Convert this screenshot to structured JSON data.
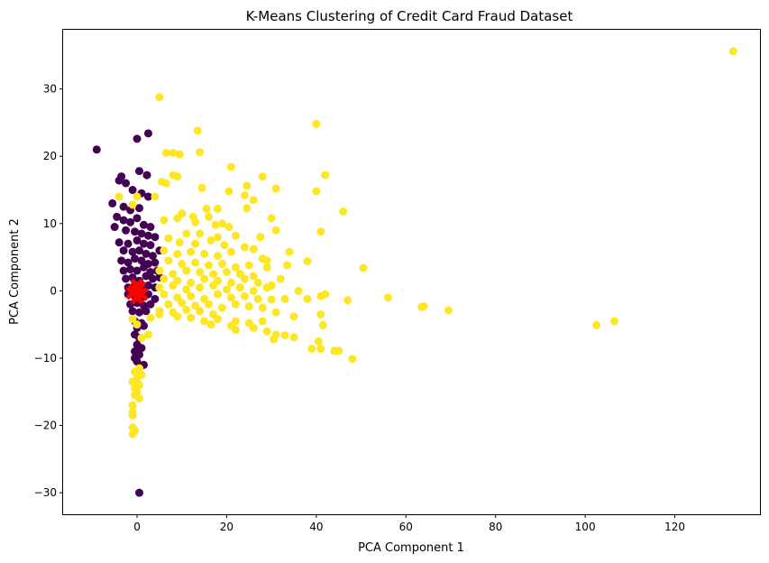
{
  "chart_data": {
    "type": "scatter",
    "title": "K-Means Clustering of Credit Card Fraud Dataset",
    "xlabel": "PCA Component 1",
    "ylabel": "PCA Component 2",
    "xlim": [
      -16.5,
      139
    ],
    "ylim": [
      -33.2,
      38.8
    ],
    "xticks": [
      0,
      20,
      40,
      60,
      80,
      100,
      120
    ],
    "yticks": [
      -30,
      -20,
      -10,
      0,
      10,
      20,
      30
    ],
    "grid": false,
    "legend": "none",
    "series": [
      {
        "color": "#440154",
        "points": [
          [
            -9,
            21
          ],
          [
            0,
            22.6
          ],
          [
            2.5,
            23.4
          ],
          [
            0.5,
            17.8
          ],
          [
            2.2,
            17.2
          ],
          [
            -3.5,
            17
          ],
          [
            -4,
            16.4
          ],
          [
            -2.5,
            16
          ],
          [
            -1,
            15
          ],
          [
            1,
            14.5
          ],
          [
            2.5,
            14
          ],
          [
            -5.5,
            13
          ],
          [
            -3,
            12.5
          ],
          [
            -1.5,
            12
          ],
          [
            0.5,
            12.3
          ],
          [
            -4.5,
            11
          ],
          [
            -3,
            10.5
          ],
          [
            -1.5,
            10.2
          ],
          [
            0,
            10.8
          ],
          [
            1.5,
            9.8
          ],
          [
            3,
            9.5
          ],
          [
            -5,
            9.5
          ],
          [
            -2.5,
            9
          ],
          [
            -0.5,
            8.8
          ],
          [
            1,
            8.5
          ],
          [
            2.5,
            8.2
          ],
          [
            4,
            8
          ],
          [
            -4,
            7.2
          ],
          [
            -2,
            7
          ],
          [
            0,
            7.5
          ],
          [
            1.5,
            7
          ],
          [
            3,
            6.8
          ],
          [
            -3,
            6
          ],
          [
            -1,
            5.8
          ],
          [
            0.5,
            6
          ],
          [
            2,
            5.5
          ],
          [
            3.5,
            5.2
          ],
          [
            5,
            6
          ],
          [
            -3.5,
            4.5
          ],
          [
            -2,
            4.2
          ],
          [
            -0.5,
            4.8
          ],
          [
            1,
            4.5
          ],
          [
            2.5,
            4
          ],
          [
            4,
            4.2
          ],
          [
            -3,
            3
          ],
          [
            -1.5,
            3.2
          ],
          [
            0,
            3
          ],
          [
            1.5,
            3.5
          ],
          [
            3,
            2.8
          ],
          [
            4.5,
            3
          ],
          [
            -2.5,
            1.8
          ],
          [
            -1,
            2
          ],
          [
            0.5,
            1.5
          ],
          [
            2,
            2.2
          ],
          [
            3.5,
            1.8
          ],
          [
            5,
            2
          ],
          [
            -2,
            0.5
          ],
          [
            -0.5,
            0.8
          ],
          [
            1,
            0.2
          ],
          [
            2.5,
            0.8
          ],
          [
            4,
            0.5
          ],
          [
            -2,
            -0.5
          ],
          [
            -0.5,
            -0.8
          ],
          [
            1,
            -1
          ],
          [
            2.5,
            -0.5
          ],
          [
            4,
            -1.2
          ],
          [
            -1.5,
            -2
          ],
          [
            0,
            -1.8
          ],
          [
            1.5,
            -2.2
          ],
          [
            3,
            -2
          ],
          [
            -1,
            -3
          ],
          [
            0.5,
            -3.2
          ],
          [
            2,
            -3
          ],
          [
            -0.5,
            -4.5
          ],
          [
            1,
            -4.8
          ],
          [
            0,
            -5.5
          ],
          [
            1.5,
            -5.2
          ],
          [
            -0.5,
            -6.5
          ],
          [
            0.5,
            -7
          ],
          [
            0,
            -8
          ],
          [
            1,
            -8.5
          ],
          [
            -0.5,
            -9
          ],
          [
            0.5,
            -9.5
          ],
          [
            -0.5,
            -10
          ],
          [
            0,
            -10.5
          ],
          [
            1.5,
            -11
          ],
          [
            0.5,
            -30
          ]
        ]
      },
      {
        "color": "#fde725",
        "points": [
          [
            133,
            35.6
          ],
          [
            5,
            28.8
          ],
          [
            40,
            24.8
          ],
          [
            13.5,
            23.8
          ],
          [
            6.5,
            20.5
          ],
          [
            8,
            20.5
          ],
          [
            9.5,
            20.3
          ],
          [
            14,
            20.6
          ],
          [
            21,
            18.4
          ],
          [
            8,
            17.2
          ],
          [
            9,
            17
          ],
          [
            28,
            17
          ],
          [
            42,
            17.2
          ],
          [
            5.5,
            16.2
          ],
          [
            6.5,
            16
          ],
          [
            24.5,
            15.6
          ],
          [
            14.5,
            15.3
          ],
          [
            31,
            15.2
          ],
          [
            40,
            14.8
          ],
          [
            4,
            14
          ],
          [
            24,
            14.2
          ],
          [
            20.5,
            14.8
          ],
          [
            26,
            13.5
          ],
          [
            -4,
            14
          ],
          [
            0,
            14
          ],
          [
            -1,
            12.8
          ],
          [
            46,
            11.8
          ],
          [
            10,
            11.5
          ],
          [
            15.5,
            12.2
          ],
          [
            18,
            12.2
          ],
          [
            24.5,
            12.3
          ],
          [
            12.5,
            11
          ],
          [
            16,
            11
          ],
          [
            6,
            10.5
          ],
          [
            9,
            10.8
          ],
          [
            13,
            10.2
          ],
          [
            19,
            10
          ],
          [
            30,
            10.8
          ],
          [
            17.5,
            9.8
          ],
          [
            20.5,
            9.5
          ],
          [
            41,
            8.8
          ],
          [
            31,
            9
          ],
          [
            11,
            8.5
          ],
          [
            14,
            8.5
          ],
          [
            18,
            8
          ],
          [
            22,
            8.2
          ],
          [
            27.5,
            8
          ],
          [
            7,
            7.8
          ],
          [
            9.5,
            7.2
          ],
          [
            13,
            7
          ],
          [
            16.5,
            7.5
          ],
          [
            19.5,
            6.8
          ],
          [
            24,
            6.5
          ],
          [
            26,
            6.2
          ],
          [
            34,
            5.8
          ],
          [
            6,
            6
          ],
          [
            9,
            5.5
          ],
          [
            12,
            5.8
          ],
          [
            15,
            5.5
          ],
          [
            18,
            5.2
          ],
          [
            21,
            5.8
          ],
          [
            28,
            4.8
          ],
          [
            38,
            4.4
          ],
          [
            29,
            4.5
          ],
          [
            7,
            4.5
          ],
          [
            10,
            4
          ],
          [
            13,
            4.2
          ],
          [
            16,
            3.8
          ],
          [
            19,
            4
          ],
          [
            22,
            3.5
          ],
          [
            25,
            3.8
          ],
          [
            33.5,
            3.8
          ],
          [
            29,
            3.5
          ],
          [
            50.5,
            3.4
          ],
          [
            5,
            3
          ],
          [
            8,
            2.5
          ],
          [
            11,
            3
          ],
          [
            14,
            2.8
          ],
          [
            17,
            2.5
          ],
          [
            20,
            2.8
          ],
          [
            23,
            2.5
          ],
          [
            26,
            2.2
          ],
          [
            32,
            1.8
          ],
          [
            6,
            1.8
          ],
          [
            9,
            1.5
          ],
          [
            12,
            1.2
          ],
          [
            15,
            1.8
          ],
          [
            18,
            1.5
          ],
          [
            21,
            1.2
          ],
          [
            24,
            1.8
          ],
          [
            27,
            1.2
          ],
          [
            30,
            0.8
          ],
          [
            5,
            0.5
          ],
          [
            8,
            0.8
          ],
          [
            11,
            0.2
          ],
          [
            14,
            0.5
          ],
          [
            17,
            0.8
          ],
          [
            20,
            0.2
          ],
          [
            23,
            0.5
          ],
          [
            26,
            0
          ],
          [
            29,
            0.5
          ],
          [
            36,
            0
          ],
          [
            41,
            -0.8
          ],
          [
            42,
            -0.5
          ],
          [
            6,
            -0.5
          ],
          [
            9,
            -1
          ],
          [
            12,
            -0.8
          ],
          [
            15,
            -1.2
          ],
          [
            18,
            -0.5
          ],
          [
            21,
            -1
          ],
          [
            24,
            -0.8
          ],
          [
            27,
            -1.2
          ],
          [
            30,
            -1.3
          ],
          [
            33,
            -1.2
          ],
          [
            56,
            -1
          ],
          [
            47,
            -1.4
          ],
          [
            38,
            -1.2
          ],
          [
            7,
            -2
          ],
          [
            10,
            -1.8
          ],
          [
            13,
            -2.2
          ],
          [
            16,
            -2
          ],
          [
            19,
            -2.5
          ],
          [
            22,
            -2
          ],
          [
            25,
            -2.3
          ],
          [
            28,
            -2.5
          ],
          [
            5,
            -3
          ],
          [
            8,
            -3.2
          ],
          [
            11,
            -2.8
          ],
          [
            14,
            -3
          ],
          [
            17,
            -3.5
          ],
          [
            64,
            -2.3
          ],
          [
            63.5,
            -2.4
          ],
          [
            69.5,
            -2.9
          ],
          [
            31,
            -3.2
          ],
          [
            41,
            -3.5
          ],
          [
            5,
            -3.5
          ],
          [
            9,
            -3.8
          ],
          [
            12,
            -4
          ],
          [
            15,
            -4.5
          ],
          [
            18,
            -4.2
          ],
          [
            22,
            -4.5
          ],
          [
            25,
            -4.8
          ],
          [
            28,
            -4.5
          ],
          [
            35,
            -3.8
          ],
          [
            3,
            -4
          ],
          [
            16.5,
            -5
          ],
          [
            21,
            -5.2
          ],
          [
            26,
            -5.5
          ],
          [
            29,
            -6
          ],
          [
            41.5,
            -5.1
          ],
          [
            22,
            -5.8
          ],
          [
            31,
            -6.5
          ],
          [
            33,
            -6.6
          ],
          [
            35,
            -6.9
          ],
          [
            30.5,
            -7.2
          ],
          [
            40.5,
            -7.5
          ],
          [
            39,
            -8.6
          ],
          [
            41,
            -8.6
          ],
          [
            44,
            -8.9
          ],
          [
            45,
            -8.9
          ],
          [
            48,
            -10.1
          ],
          [
            102.5,
            -5.1
          ],
          [
            106.5,
            -4.5
          ],
          [
            1,
            -7
          ],
          [
            2.5,
            -6.5
          ],
          [
            -1,
            -4.2
          ],
          [
            0,
            -5
          ],
          [
            0.5,
            -11.5
          ],
          [
            -0.5,
            -12
          ],
          [
            1,
            -12.5
          ],
          [
            0,
            -13
          ],
          [
            -1,
            -13.5
          ],
          [
            0.5,
            -14
          ],
          [
            -0.5,
            -14.5
          ],
          [
            0,
            -15
          ],
          [
            -0.5,
            -15.5
          ],
          [
            0.5,
            -16
          ],
          [
            -1,
            -17
          ],
          [
            -1,
            -18
          ],
          [
            -1,
            -18.5
          ],
          [
            -1,
            -20.3
          ],
          [
            -0.5,
            -20.8
          ],
          [
            -1,
            -21.3
          ]
        ]
      },
      {
        "color": "#ff0000",
        "points": [
          [
            -0.5,
            0
          ],
          [
            0.5,
            0.5
          ],
          [
            0,
            -1
          ],
          [
            -1,
            -0.3
          ],
          [
            1,
            -0.5
          ],
          [
            0,
            0.8
          ]
        ]
      }
    ]
  }
}
